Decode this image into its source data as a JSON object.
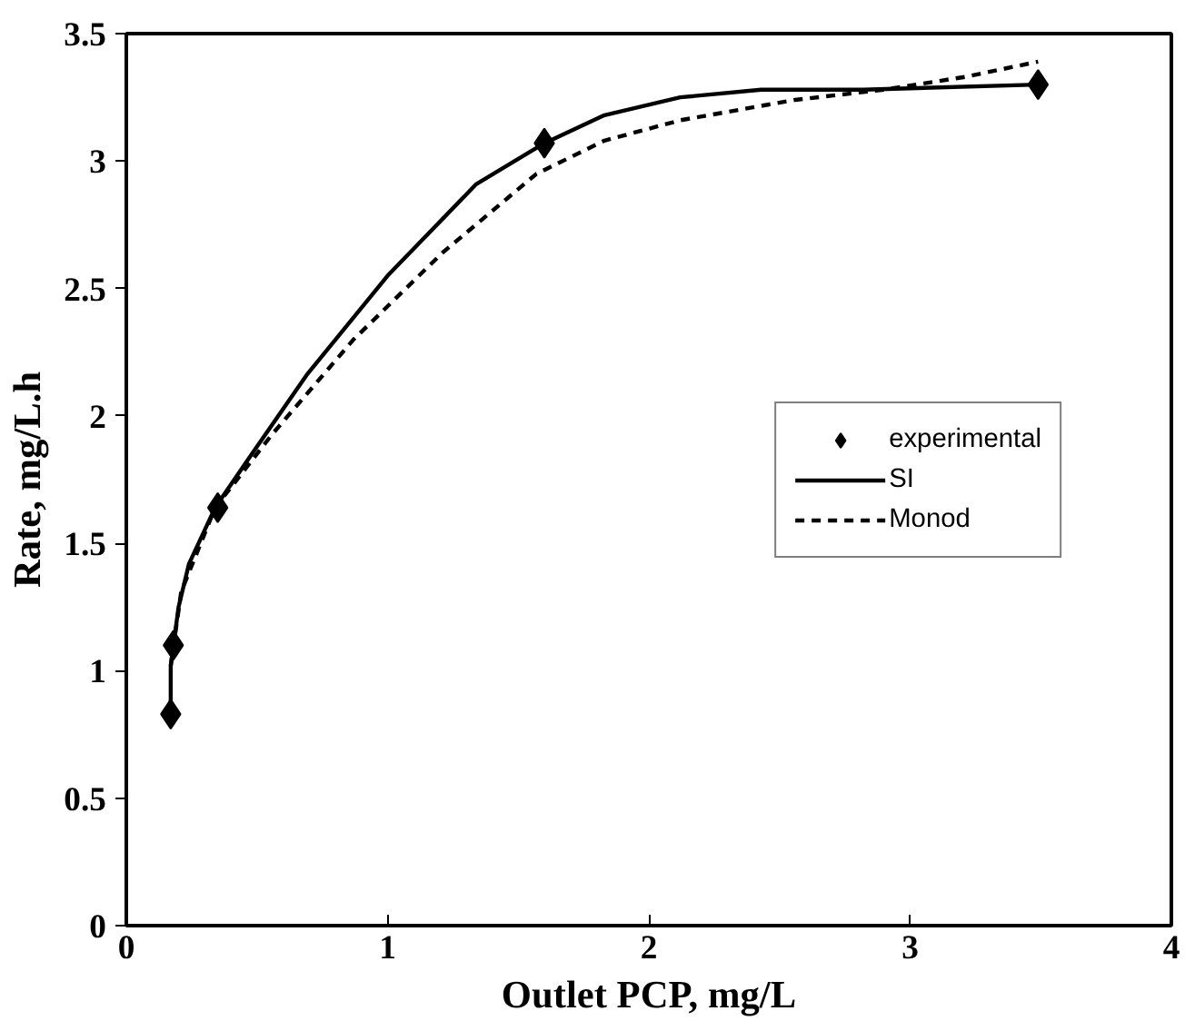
{
  "chart_data": {
    "type": "line",
    "xlabel": "Outlet PCP, mg/L",
    "ylabel": "Rate, mg/L.h",
    "xlim": [
      0,
      4
    ],
    "ylim": [
      0,
      3.5
    ],
    "xticks": [
      0,
      1,
      2,
      3,
      4
    ],
    "yticks": [
      0,
      0.5,
      1,
      1.5,
      2,
      2.5,
      3,
      3.5
    ],
    "grid": false,
    "legend": "right",
    "series": [
      {
        "name": "experimental",
        "type": "scatter",
        "marker": "diamond",
        "color": "#000000",
        "x": [
          0.17,
          0.18,
          0.35,
          1.6,
          3.49
        ],
        "values": [
          0.83,
          1.1,
          1.64,
          3.07,
          3.3
        ]
      },
      {
        "name": "SI",
        "line_style": "solid",
        "color": "#000000",
        "x": [
          0.17,
          0.17,
          0.2,
          0.24,
          0.34,
          0.48,
          0.69,
          1.0,
          1.34,
          1.6,
          1.83,
          2.12,
          2.43,
          2.82,
          3.49
        ],
        "values": [
          0.82,
          1.02,
          1.25,
          1.42,
          1.64,
          1.85,
          2.16,
          2.55,
          2.91,
          3.07,
          3.18,
          3.25,
          3.28,
          3.28,
          3.3
        ]
      },
      {
        "name": "Monod",
        "line_style": "dashed",
        "color": "#000000",
        "x": [
          0.17,
          0.21,
          0.34,
          0.56,
          0.87,
          1.21,
          1.57,
          1.83,
          2.12,
          2.56,
          2.9,
          3.21,
          3.49
        ],
        "values": [
          1.02,
          1.31,
          1.64,
          1.93,
          2.3,
          2.64,
          2.95,
          3.08,
          3.16,
          3.24,
          3.28,
          3.33,
          3.39
        ]
      }
    ]
  }
}
